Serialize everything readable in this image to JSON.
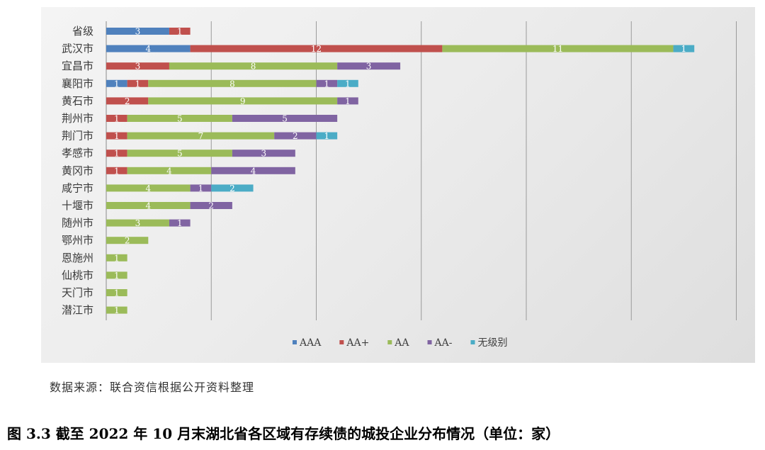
{
  "chart_data": {
    "type": "bar",
    "orientation": "horizontal",
    "stacked": true,
    "categories": [
      "省级",
      "武汉市",
      "宜昌市",
      "襄阳市",
      "黄石市",
      "荆州市",
      "荆门市",
      "孝感市",
      "黄冈市",
      "咸宁市",
      "十堰市",
      "随州市",
      "鄂州市",
      "恩施州",
      "仙桃市",
      "天门市",
      "潜江市"
    ],
    "series": [
      {
        "name": "AAA",
        "color": "#4f81bd",
        "values": [
          3,
          4,
          0,
          1,
          0,
          0,
          0,
          0,
          0,
          0,
          0,
          0,
          0,
          0,
          0,
          0,
          0
        ]
      },
      {
        "name": "AA+",
        "color": "#c0504d",
        "values": [
          1,
          12,
          3,
          1,
          2,
          1,
          1,
          1,
          1,
          0,
          0,
          0,
          0,
          0,
          0,
          0,
          0
        ]
      },
      {
        "name": "AA",
        "color": "#9bbb59",
        "values": [
          0,
          11,
          8,
          8,
          9,
          5,
          7,
          5,
          4,
          4,
          4,
          3,
          2,
          1,
          1,
          1,
          1
        ]
      },
      {
        "name": "AA-",
        "color": "#8064a2",
        "values": [
          0,
          0,
          3,
          1,
          1,
          5,
          2,
          3,
          4,
          1,
          2,
          1,
          0,
          0,
          0,
          0,
          0
        ]
      },
      {
        "name": "无级别",
        "color": "#4bacc6",
        "values": [
          0,
          1,
          0,
          1,
          0,
          0,
          1,
          0,
          0,
          2,
          0,
          0,
          0,
          0,
          0,
          0,
          0
        ]
      }
    ],
    "xlim": [
      0,
      30
    ],
    "grid": true,
    "legend_position": "bottom",
    "data_labels": true
  },
  "source_note": "数据来源：联合资信根据公开资料整理",
  "caption": "图 3.3    截至 2022 年 10 月末湖北省各区域有存续债的城投企业分布情况（单位：家）"
}
